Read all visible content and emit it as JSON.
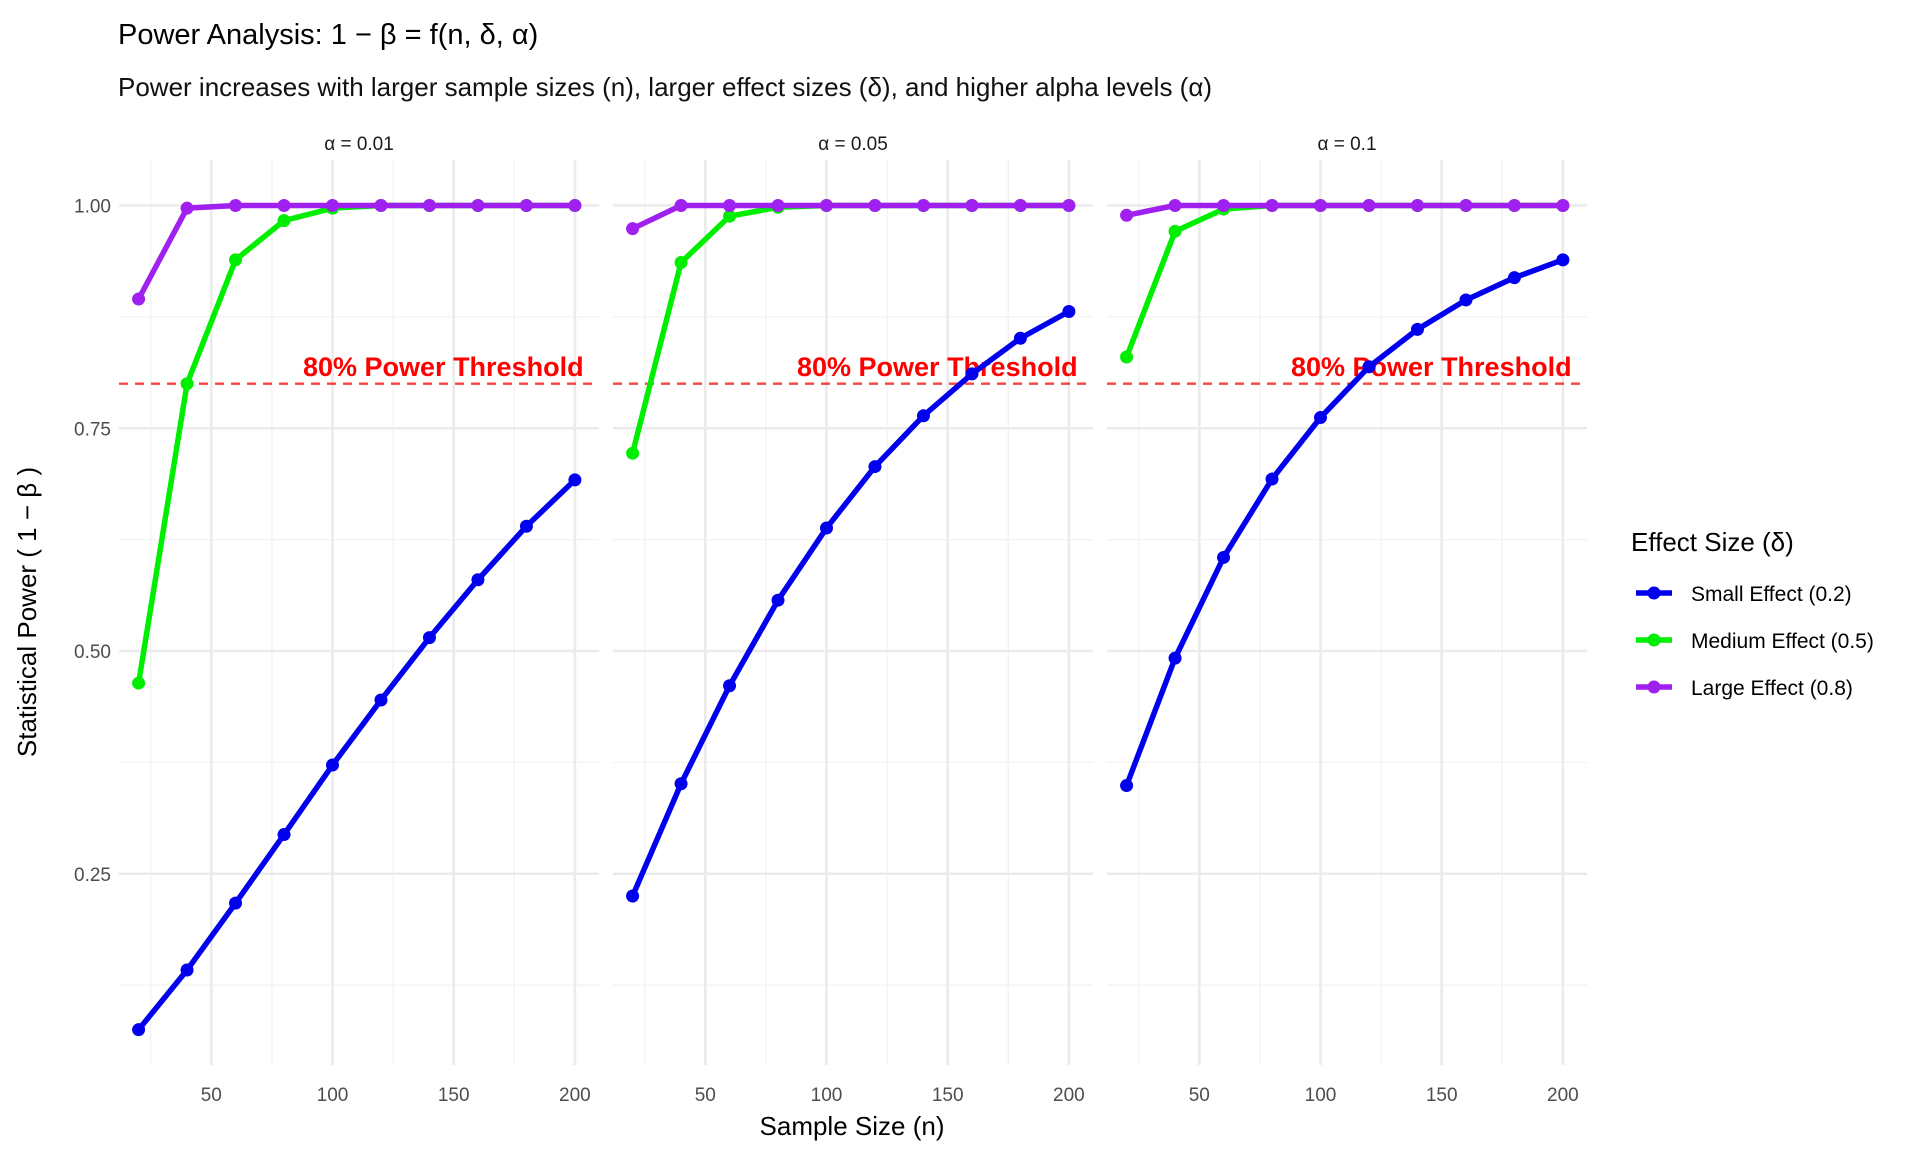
{
  "chart_data": {
    "type": "line",
    "title": "Power Analysis:  1 − β = f(n, δ, α)",
    "subtitle": "Power increases with larger sample sizes (n), larger effect sizes (δ), and higher alpha levels (α)",
    "xlabel": "Sample Size (n)",
    "ylabel": "Statistical Power ( 1 − β )",
    "x": [
      20,
      40,
      60,
      80,
      100,
      120,
      140,
      160,
      180,
      200
    ],
    "x_ticks": [
      "50",
      "100",
      "150",
      "200"
    ],
    "x_tick_values": [
      50,
      100,
      150,
      200
    ],
    "y_ticks": [
      "0.25",
      "0.50",
      "0.75",
      "1.00"
    ],
    "y_tick_values": [
      0.25,
      0.5,
      0.75,
      1.0
    ],
    "xlim": [
      8,
      208
    ],
    "ylim": [
      0.036,
      1.05
    ],
    "grid": true,
    "threshold": {
      "value": 0.8,
      "label": "80% Power Threshold",
      "color": "#ff0000"
    },
    "legend": {
      "title": "Effect Size (δ)",
      "position": "right"
    },
    "panels": [
      {
        "label": "α = 0.01",
        "series": [
          {
            "name": "Small Effect (0.2)",
            "color": "#0000ee",
            "values": [
              0.075,
              0.142,
              0.217,
              0.294,
              0.372,
              0.445,
              0.515,
              0.58,
              0.64,
              0.692
            ]
          },
          {
            "name": "Medium Effect (0.5)",
            "color": "#00ee00",
            "values": [
              0.464,
              0.8,
              0.939,
              0.983,
              0.997,
              1.0,
              1.0,
              1.0,
              1.0,
              1.0
            ]
          },
          {
            "name": "Large Effect (0.8)",
            "color": "#a020f0",
            "values": [
              0.895,
              0.997,
              1.0,
              1.0,
              1.0,
              1.0,
              1.0,
              1.0,
              1.0,
              1.0
            ]
          }
        ]
      },
      {
        "label": "α = 0.05",
        "series": [
          {
            "name": "Small Effect (0.2)",
            "color": "#0000ee",
            "values": [
              0.225,
              0.351,
              0.461,
              0.557,
              0.638,
              0.707,
              0.764,
              0.811,
              0.851,
              0.881
            ]
          },
          {
            "name": "Medium Effect (0.5)",
            "color": "#00ee00",
            "values": [
              0.722,
              0.936,
              0.988,
              0.998,
              1.0,
              1.0,
              1.0,
              1.0,
              1.0,
              1.0
            ]
          },
          {
            "name": "Large Effect (0.8)",
            "color": "#a020f0",
            "values": [
              0.974,
              1.0,
              1.0,
              1.0,
              1.0,
              1.0,
              1.0,
              1.0,
              1.0,
              1.0
            ]
          }
        ]
      },
      {
        "label": "α = 0.1",
        "series": [
          {
            "name": "Small Effect (0.2)",
            "color": "#0000ee",
            "values": [
              0.349,
              0.492,
              0.605,
              0.693,
              0.762,
              0.819,
              0.861,
              0.894,
              0.919,
              0.939
            ]
          },
          {
            "name": "Medium Effect (0.5)",
            "color": "#00ee00",
            "values": [
              0.83,
              0.971,
              0.996,
              1.0,
              1.0,
              1.0,
              1.0,
              1.0,
              1.0,
              1.0
            ]
          },
          {
            "name": "Large Effect (0.8)",
            "color": "#a020f0",
            "values": [
              0.989,
              1.0,
              1.0,
              1.0,
              1.0,
              1.0,
              1.0,
              1.0,
              1.0,
              1.0
            ]
          }
        ]
      }
    ]
  }
}
